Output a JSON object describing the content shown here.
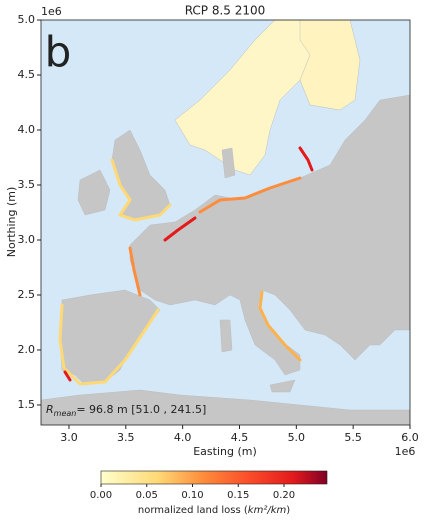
{
  "chart_data": {
    "type": "map",
    "title": "RCP 8.5 2100",
    "panel_label": "b",
    "xlabel": "Easting (m)",
    "ylabel": "Northing (m)",
    "x_offset": "1e6",
    "y_offset": "1e6",
    "xlim": [
      2754000,
      6000000
    ],
    "ylim": [
      1318000,
      5000000
    ],
    "xticks": [
      {
        "value": 3000000,
        "label": "3.0"
      },
      {
        "value": 3500000,
        "label": "3.5"
      },
      {
        "value": 4000000,
        "label": "4.0"
      },
      {
        "value": 4500000,
        "label": "4.5"
      },
      {
        "value": 5000000,
        "label": "5.0"
      },
      {
        "value": 5500000,
        "label": "5.5"
      },
      {
        "value": 6000000,
        "label": "6.0"
      }
    ],
    "yticks": [
      {
        "value": 1500000,
        "label": "1.5"
      },
      {
        "value": 2000000,
        "label": "2.0"
      },
      {
        "value": 2500000,
        "label": "2.5"
      },
      {
        "value": 3000000,
        "label": "3.0"
      },
      {
        "value": 3500000,
        "label": "3.5"
      },
      {
        "value": 4000000,
        "label": "4.0"
      },
      {
        "value": 4500000,
        "label": "4.5"
      },
      {
        "value": 5000000,
        "label": "5.0"
      }
    ],
    "annotation": {
      "symbol": "R",
      "subscript": "mean",
      "text": "= 96.8 m [51.0 , 241.5]"
    },
    "colorbar": {
      "label_prefix": "normalized land loss (",
      "label_unit": "km²/km",
      "label_suffix": ")",
      "lim": [
        0,
        0.247
      ],
      "ticks": [
        {
          "value": 0,
          "label": "0.00"
        },
        {
          "value": 0.05,
          "label": "0.05"
        },
        {
          "value": 0.1,
          "label": "0.10"
        },
        {
          "value": 0.15,
          "label": "0.15"
        },
        {
          "value": 0.2,
          "label": "0.20"
        }
      ]
    }
  }
}
